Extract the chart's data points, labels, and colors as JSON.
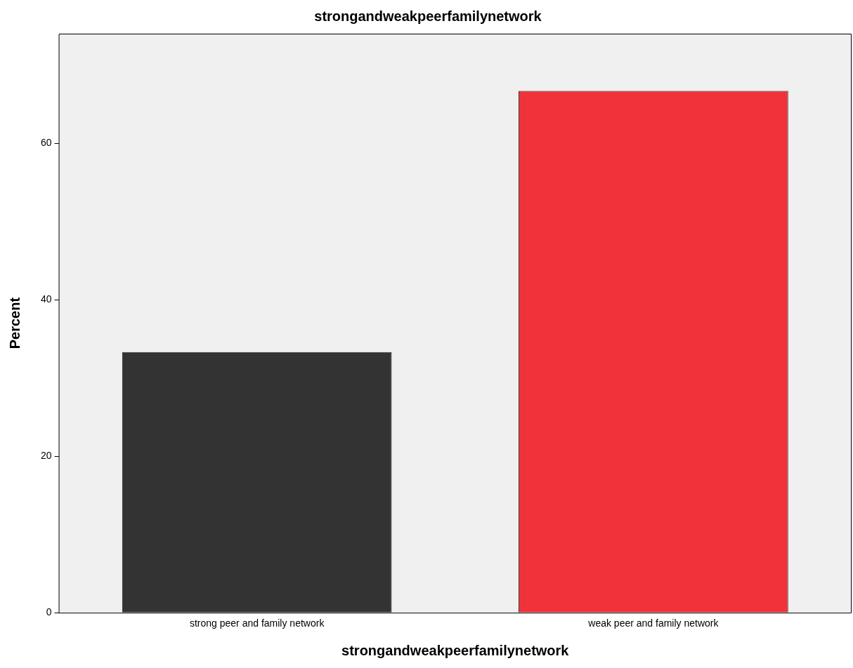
{
  "chart_data": {
    "type": "bar",
    "title": "strongandweakpeerfamilynetwork",
    "xlabel": "strongandweakpeerfamilynetwork",
    "ylabel": "Percent",
    "categories": [
      "strong peer and family network",
      "weak peer and family network"
    ],
    "values": [
      33.3,
      66.7
    ],
    "colors": [
      "#333333",
      "#f0323a"
    ],
    "ylim": [
      0,
      74
    ],
    "yticks": [
      0,
      20,
      40,
      60
    ],
    "grid": false,
    "legend": false
  }
}
